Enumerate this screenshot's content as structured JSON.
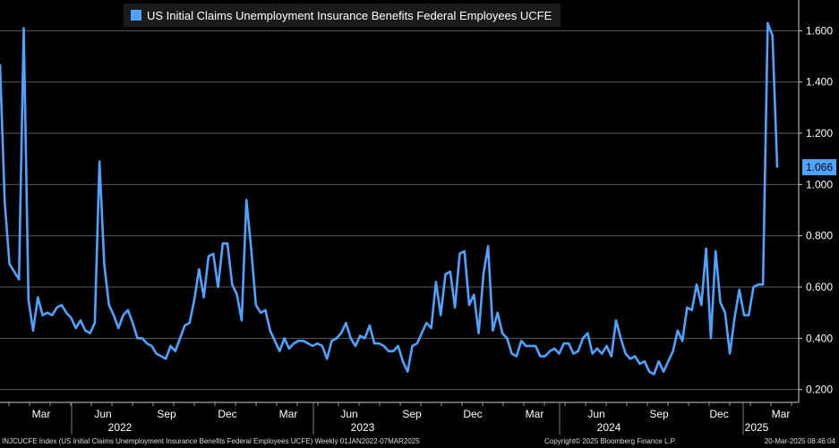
{
  "legend_label": "US Initial Claims Unemployment Insurance Benefits Federal Employees UCFE",
  "last_value_label": "1.066",
  "footer": {
    "source": "INJCUCFE Index (US Initial Claims Unemployment Insurance Benefits Federal Employees UCFE)  Weekly 01JAN2022-07MAR2025",
    "copyright": "Copyright© 2025 Bloomberg Finance L.P.",
    "timestamp": "20-Mar-2025 08:46:04"
  },
  "colors": {
    "background": "#000000",
    "line": "#4da3ff",
    "grid": "#5a5a5a"
  },
  "chart_data": {
    "type": "line",
    "title": "",
    "xlabel": "",
    "ylabel": "",
    "ylim": [
      0.15,
      1.72
    ],
    "y_ticks": [
      "0.200",
      "0.400",
      "0.600",
      "0.800",
      "1.000",
      "1.200",
      "1.400",
      "1.600"
    ],
    "y_axis_side": "right",
    "grid": true,
    "legend_position": "top-left",
    "x_month_labels": [
      "Mar",
      "Jun",
      "Sep",
      "Dec",
      "Mar",
      "Jun",
      "Sep",
      "Dec",
      "Mar",
      "Jun",
      "Sep",
      "Dec",
      "Mar"
    ],
    "x_year_labels": [
      "2022",
      "2023",
      "2024",
      "2025"
    ],
    "series": [
      {
        "name": "US Initial Claims Unemployment Insurance Benefits Federal Employees UCFE",
        "values": [
          1.47,
          0.93,
          0.69,
          0.66,
          0.63,
          1.61,
          0.55,
          0.43,
          0.56,
          0.49,
          0.5,
          0.49,
          0.52,
          0.53,
          0.5,
          0.48,
          0.44,
          0.47,
          0.43,
          0.42,
          0.46,
          1.09,
          0.69,
          0.53,
          0.49,
          0.44,
          0.49,
          0.51,
          0.46,
          0.4,
          0.4,
          0.38,
          0.37,
          0.34,
          0.33,
          0.32,
          0.37,
          0.35,
          0.4,
          0.45,
          0.46,
          0.55,
          0.67,
          0.56,
          0.72,
          0.73,
          0.6,
          0.77,
          0.77,
          0.61,
          0.57,
          0.47,
          0.94,
          0.75,
          0.53,
          0.5,
          0.51,
          0.43,
          0.39,
          0.35,
          0.4,
          0.36,
          0.38,
          0.39,
          0.39,
          0.38,
          0.37,
          0.38,
          0.37,
          0.32,
          0.39,
          0.4,
          0.42,
          0.46,
          0.4,
          0.37,
          0.41,
          0.4,
          0.45,
          0.38,
          0.38,
          0.37,
          0.35,
          0.35,
          0.37,
          0.31,
          0.27,
          0.37,
          0.38,
          0.42,
          0.46,
          0.44,
          0.62,
          0.49,
          0.65,
          0.66,
          0.52,
          0.73,
          0.74,
          0.53,
          0.57,
          0.42,
          0.65,
          0.76,
          0.43,
          0.5,
          0.42,
          0.4,
          0.34,
          0.33,
          0.39,
          0.37,
          0.37,
          0.37,
          0.33,
          0.33,
          0.35,
          0.36,
          0.34,
          0.38,
          0.38,
          0.34,
          0.35,
          0.4,
          0.42,
          0.34,
          0.36,
          0.34,
          0.37,
          0.33,
          0.47,
          0.4,
          0.34,
          0.32,
          0.33,
          0.3,
          0.31,
          0.27,
          0.26,
          0.31,
          0.27,
          0.31,
          0.35,
          0.43,
          0.39,
          0.52,
          0.51,
          0.61,
          0.53,
          0.75,
          0.4,
          0.74,
          0.54,
          0.5,
          0.34,
          0.48,
          0.59,
          0.49,
          0.49,
          0.6,
          0.61,
          0.61,
          1.63,
          1.58,
          1.066
        ]
      }
    ]
  }
}
